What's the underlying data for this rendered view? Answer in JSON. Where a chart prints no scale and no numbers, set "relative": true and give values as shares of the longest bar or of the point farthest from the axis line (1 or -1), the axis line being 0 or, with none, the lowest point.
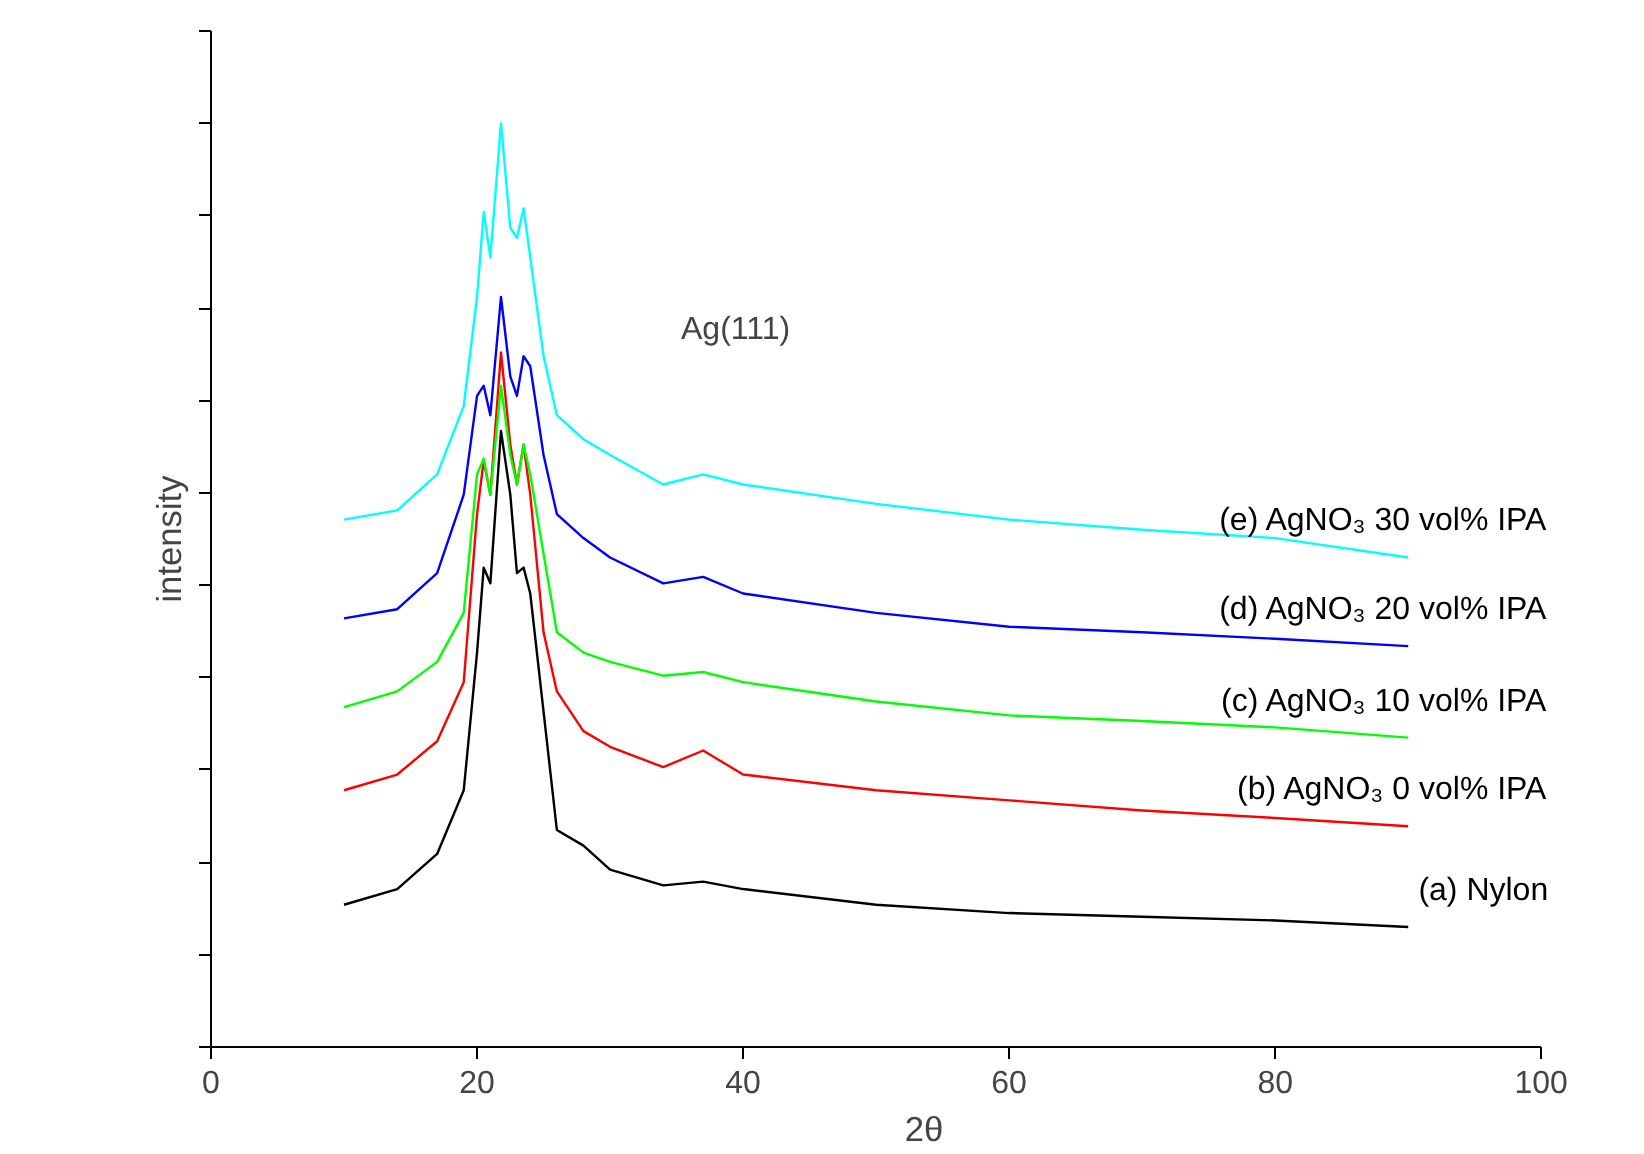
{
  "chart_data": {
    "type": "line",
    "relative": true,
    "xlabel": "2θ",
    "ylabel": "intensity",
    "xlim": [
      0,
      100
    ],
    "xticks": [
      0,
      20,
      40,
      60,
      80,
      100
    ],
    "grid": false,
    "marker": "none",
    "line_style": "solid",
    "x": [
      10,
      14,
      17,
      19,
      20,
      20.5,
      21,
      21.8,
      22.5,
      23,
      23.5,
      24,
      25,
      26,
      28,
      30,
      34,
      37,
      40,
      50,
      60,
      70,
      80,
      90
    ],
    "annotations": [
      "Ag(111)"
    ],
    "series": [
      {
        "name": "(a) Nylon",
        "color": "#000000",
        "values": [
          0.154,
          0.171,
          0.209,
          0.278,
          0.427,
          0.519,
          0.502,
          0.667,
          0.598,
          0.513,
          0.519,
          0.491,
          0.363,
          0.235,
          0.218,
          0.192,
          0.175,
          0.179,
          0.171,
          0.154,
          0.145,
          0.141,
          0.137,
          0.13
        ]
      },
      {
        "name": "(b) AgNO₃ 0 vol% IPA",
        "color": "#ff0000",
        "values": [
          0.278,
          0.295,
          0.331,
          0.395,
          0.577,
          0.635,
          0.598,
          0.752,
          0.652,
          0.609,
          0.652,
          0.598,
          0.449,
          0.385,
          0.342,
          0.325,
          0.303,
          0.321,
          0.295,
          0.278,
          0.267,
          0.256,
          0.248,
          0.239
        ]
      },
      {
        "name": "(c) AgNO₃ 10 vol% IPA",
        "color": "#00ff00",
        "values": [
          0.368,
          0.385,
          0.417,
          0.47,
          0.62,
          0.637,
          0.598,
          0.716,
          0.641,
          0.609,
          0.652,
          0.62,
          0.534,
          0.449,
          0.427,
          0.417,
          0.402,
          0.406,
          0.395,
          0.374,
          0.359,
          0.353,
          0.346,
          0.335
        ]
      },
      {
        "name": "(d) AgNO₃ 20 vol% IPA",
        "color": "#0000ff",
        "values": [
          0.464,
          0.474,
          0.513,
          0.598,
          0.705,
          0.716,
          0.684,
          0.812,
          0.726,
          0.705,
          0.748,
          0.737,
          0.641,
          0.577,
          0.551,
          0.53,
          0.502,
          0.509,
          0.491,
          0.47,
          0.455,
          0.449,
          0.442,
          0.434
        ]
      },
      {
        "name": "(e) AgNO₃ 30 vol% IPA",
        "color": "#00ffff",
        "values": [
          0.571,
          0.581,
          0.62,
          0.694,
          0.812,
          0.904,
          0.855,
          1.0,
          0.887,
          0.876,
          0.908,
          0.855,
          0.748,
          0.684,
          0.658,
          0.641,
          0.609,
          0.62,
          0.609,
          0.588,
          0.571,
          0.56,
          0.551,
          0.53
        ]
      }
    ]
  }
}
